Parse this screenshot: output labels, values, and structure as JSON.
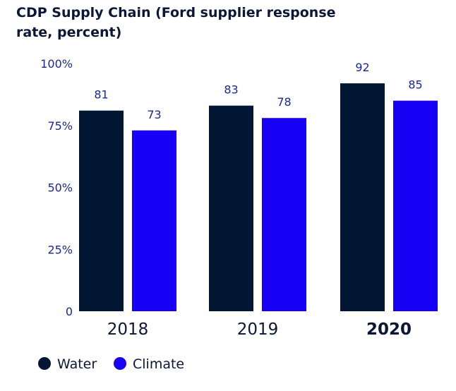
{
  "chart_data": {
    "type": "bar",
    "title_lines": [
      "CDP Supply Chain (Ford supplier response",
      "rate, percent)"
    ],
    "categories": [
      "2018",
      "2019",
      "2020"
    ],
    "highlight_category": "2020",
    "series": [
      {
        "name": "Water",
        "values": [
          81,
          83,
          92
        ],
        "color": "#001633"
      },
      {
        "name": "Climate",
        "values": [
          73,
          78,
          85
        ],
        "color": "#1700f4"
      }
    ],
    "y_ticks": [
      {
        "value": 0,
        "label": "0"
      },
      {
        "value": 25,
        "label": "25%"
      },
      {
        "value": 50,
        "label": "50%"
      },
      {
        "value": 75,
        "label": "75%"
      },
      {
        "value": 100,
        "label": "100%"
      }
    ],
    "ylim": [
      0,
      100
    ],
    "grid": false,
    "legend_position": "bottom-left",
    "colors": {
      "text": "#0b1736",
      "tick_text": "#1a2a8c"
    }
  }
}
